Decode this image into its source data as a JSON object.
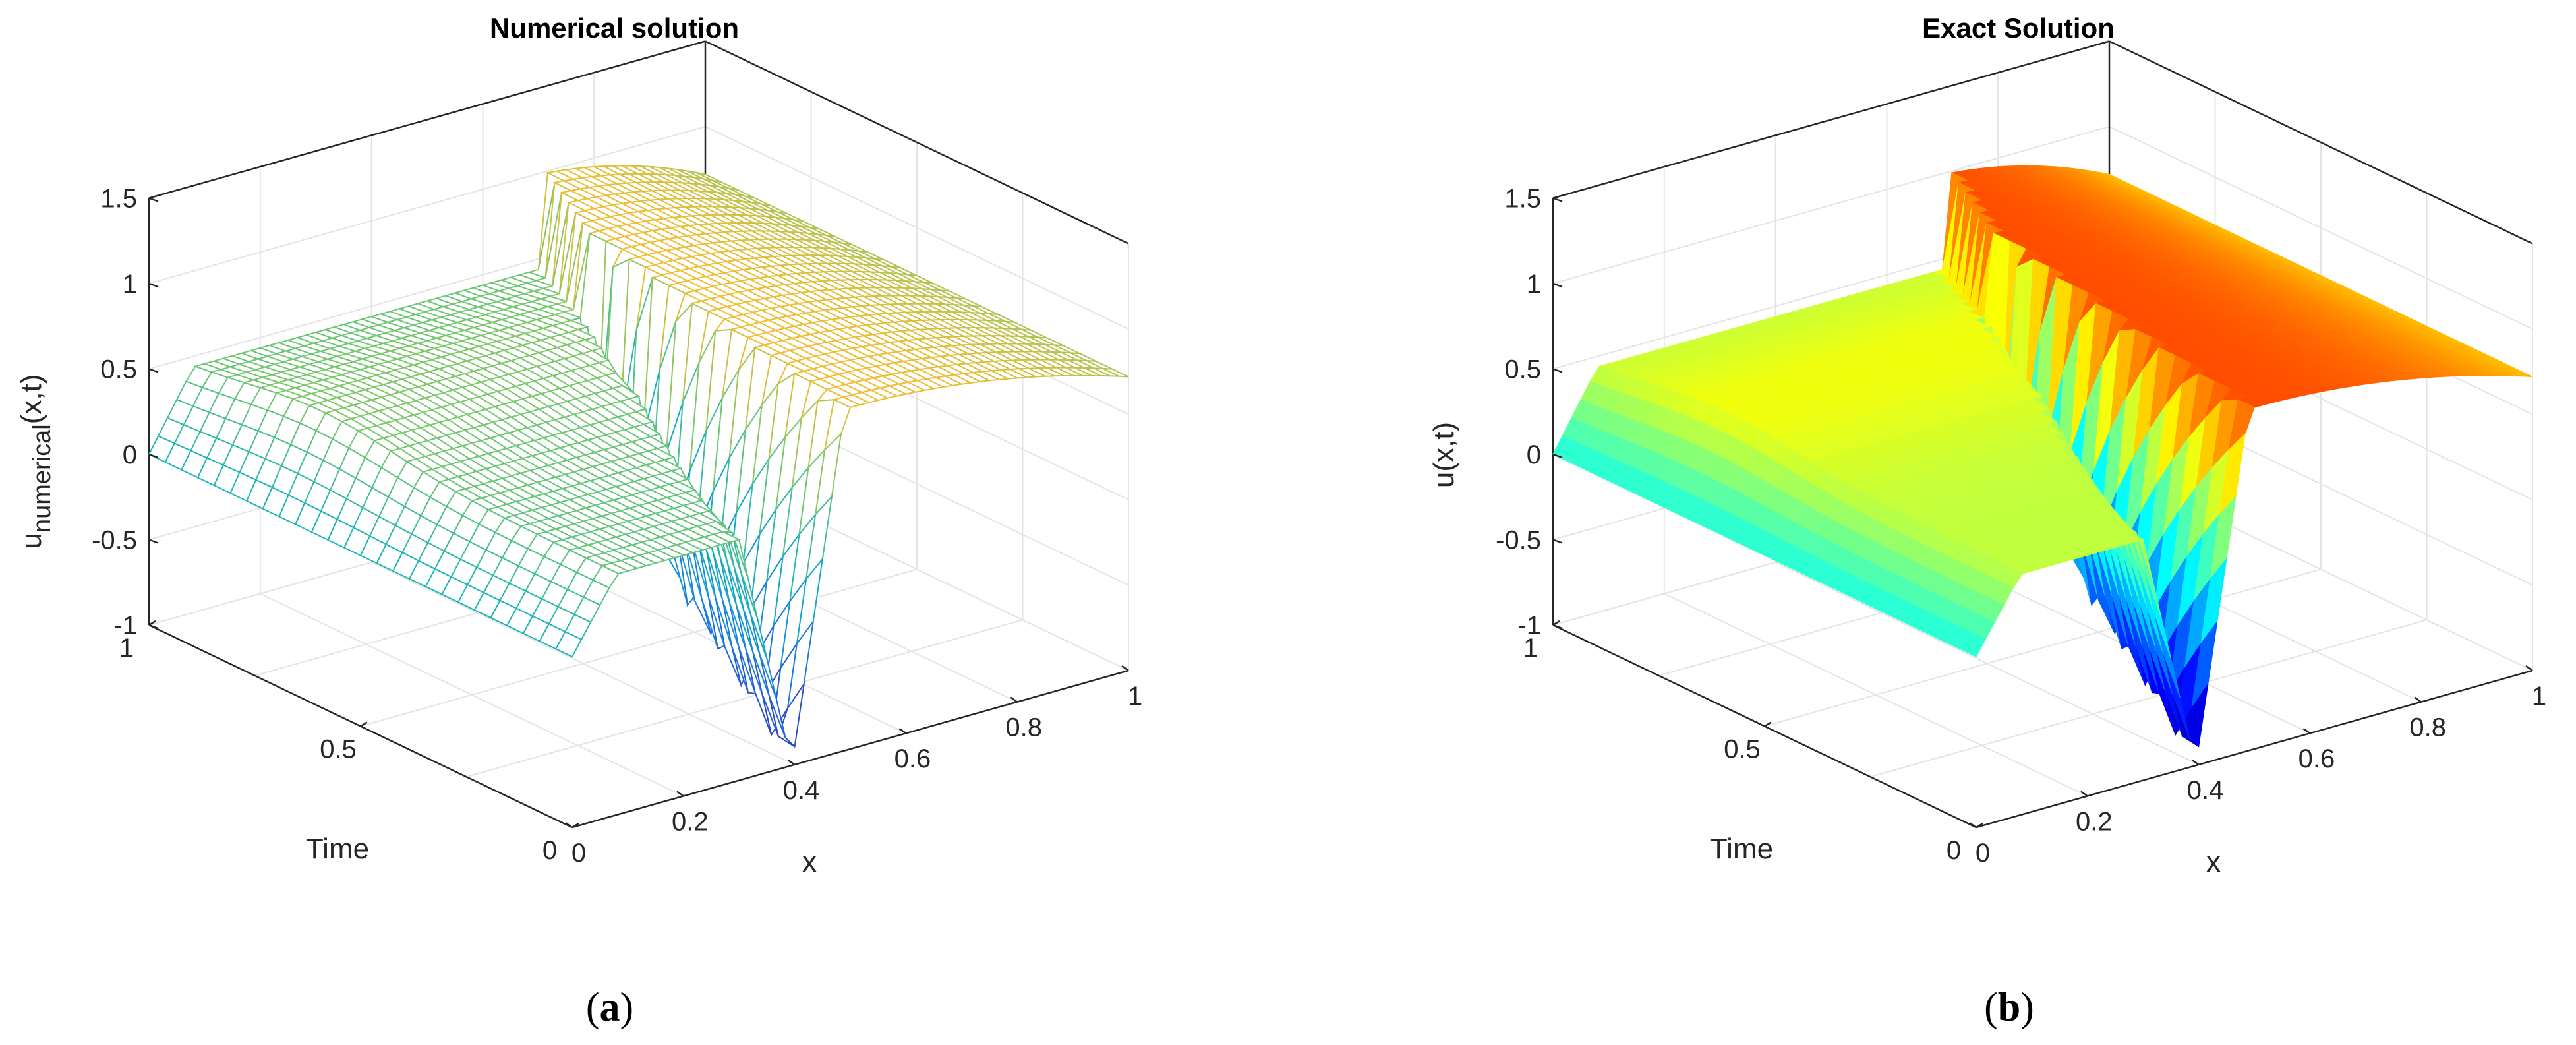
{
  "chart_data": [
    {
      "type": "surface",
      "style": "mesh",
      "title": "Numerical solution",
      "xlabel": "x",
      "ylabel": "Time",
      "zlabel_main": "u",
      "zlabel_sub": "numerical",
      "zlabel_tail": "(x,t)",
      "xlim": [
        0,
        1
      ],
      "ylim": [
        0,
        1
      ],
      "zlim": [
        -1,
        1.5
      ],
      "x_ticks": [
        "0",
        "0.2",
        "0.4",
        "0.6",
        "0.8",
        "1"
      ],
      "y_ticks": [
        "0",
        "0.5",
        "1"
      ],
      "z_ticks": [
        "-1",
        "-0.5",
        "0",
        "0.5",
        "1",
        "1.5"
      ],
      "colormap": "parula",
      "grid": true,
      "subfigure_label": "a"
    },
    {
      "type": "surface",
      "style": "shaded",
      "title": "Exact Solution",
      "xlabel": "x",
      "ylabel": "Time",
      "zlabel": "u(x,t)",
      "xlim": [
        0,
        1
      ],
      "ylim": [
        0,
        1
      ],
      "zlim": [
        -1,
        1.5
      ],
      "x_ticks": [
        "0",
        "0.2",
        "0.4",
        "0.6",
        "0.8",
        "1"
      ],
      "y_ticks": [
        "0",
        "0.5",
        "1"
      ],
      "z_ticks": [
        "-1",
        "-0.5",
        "0",
        "0.5",
        "1",
        "1.5"
      ],
      "colormap": "jet",
      "grid": true,
      "subfigure_label": "b"
    }
  ]
}
